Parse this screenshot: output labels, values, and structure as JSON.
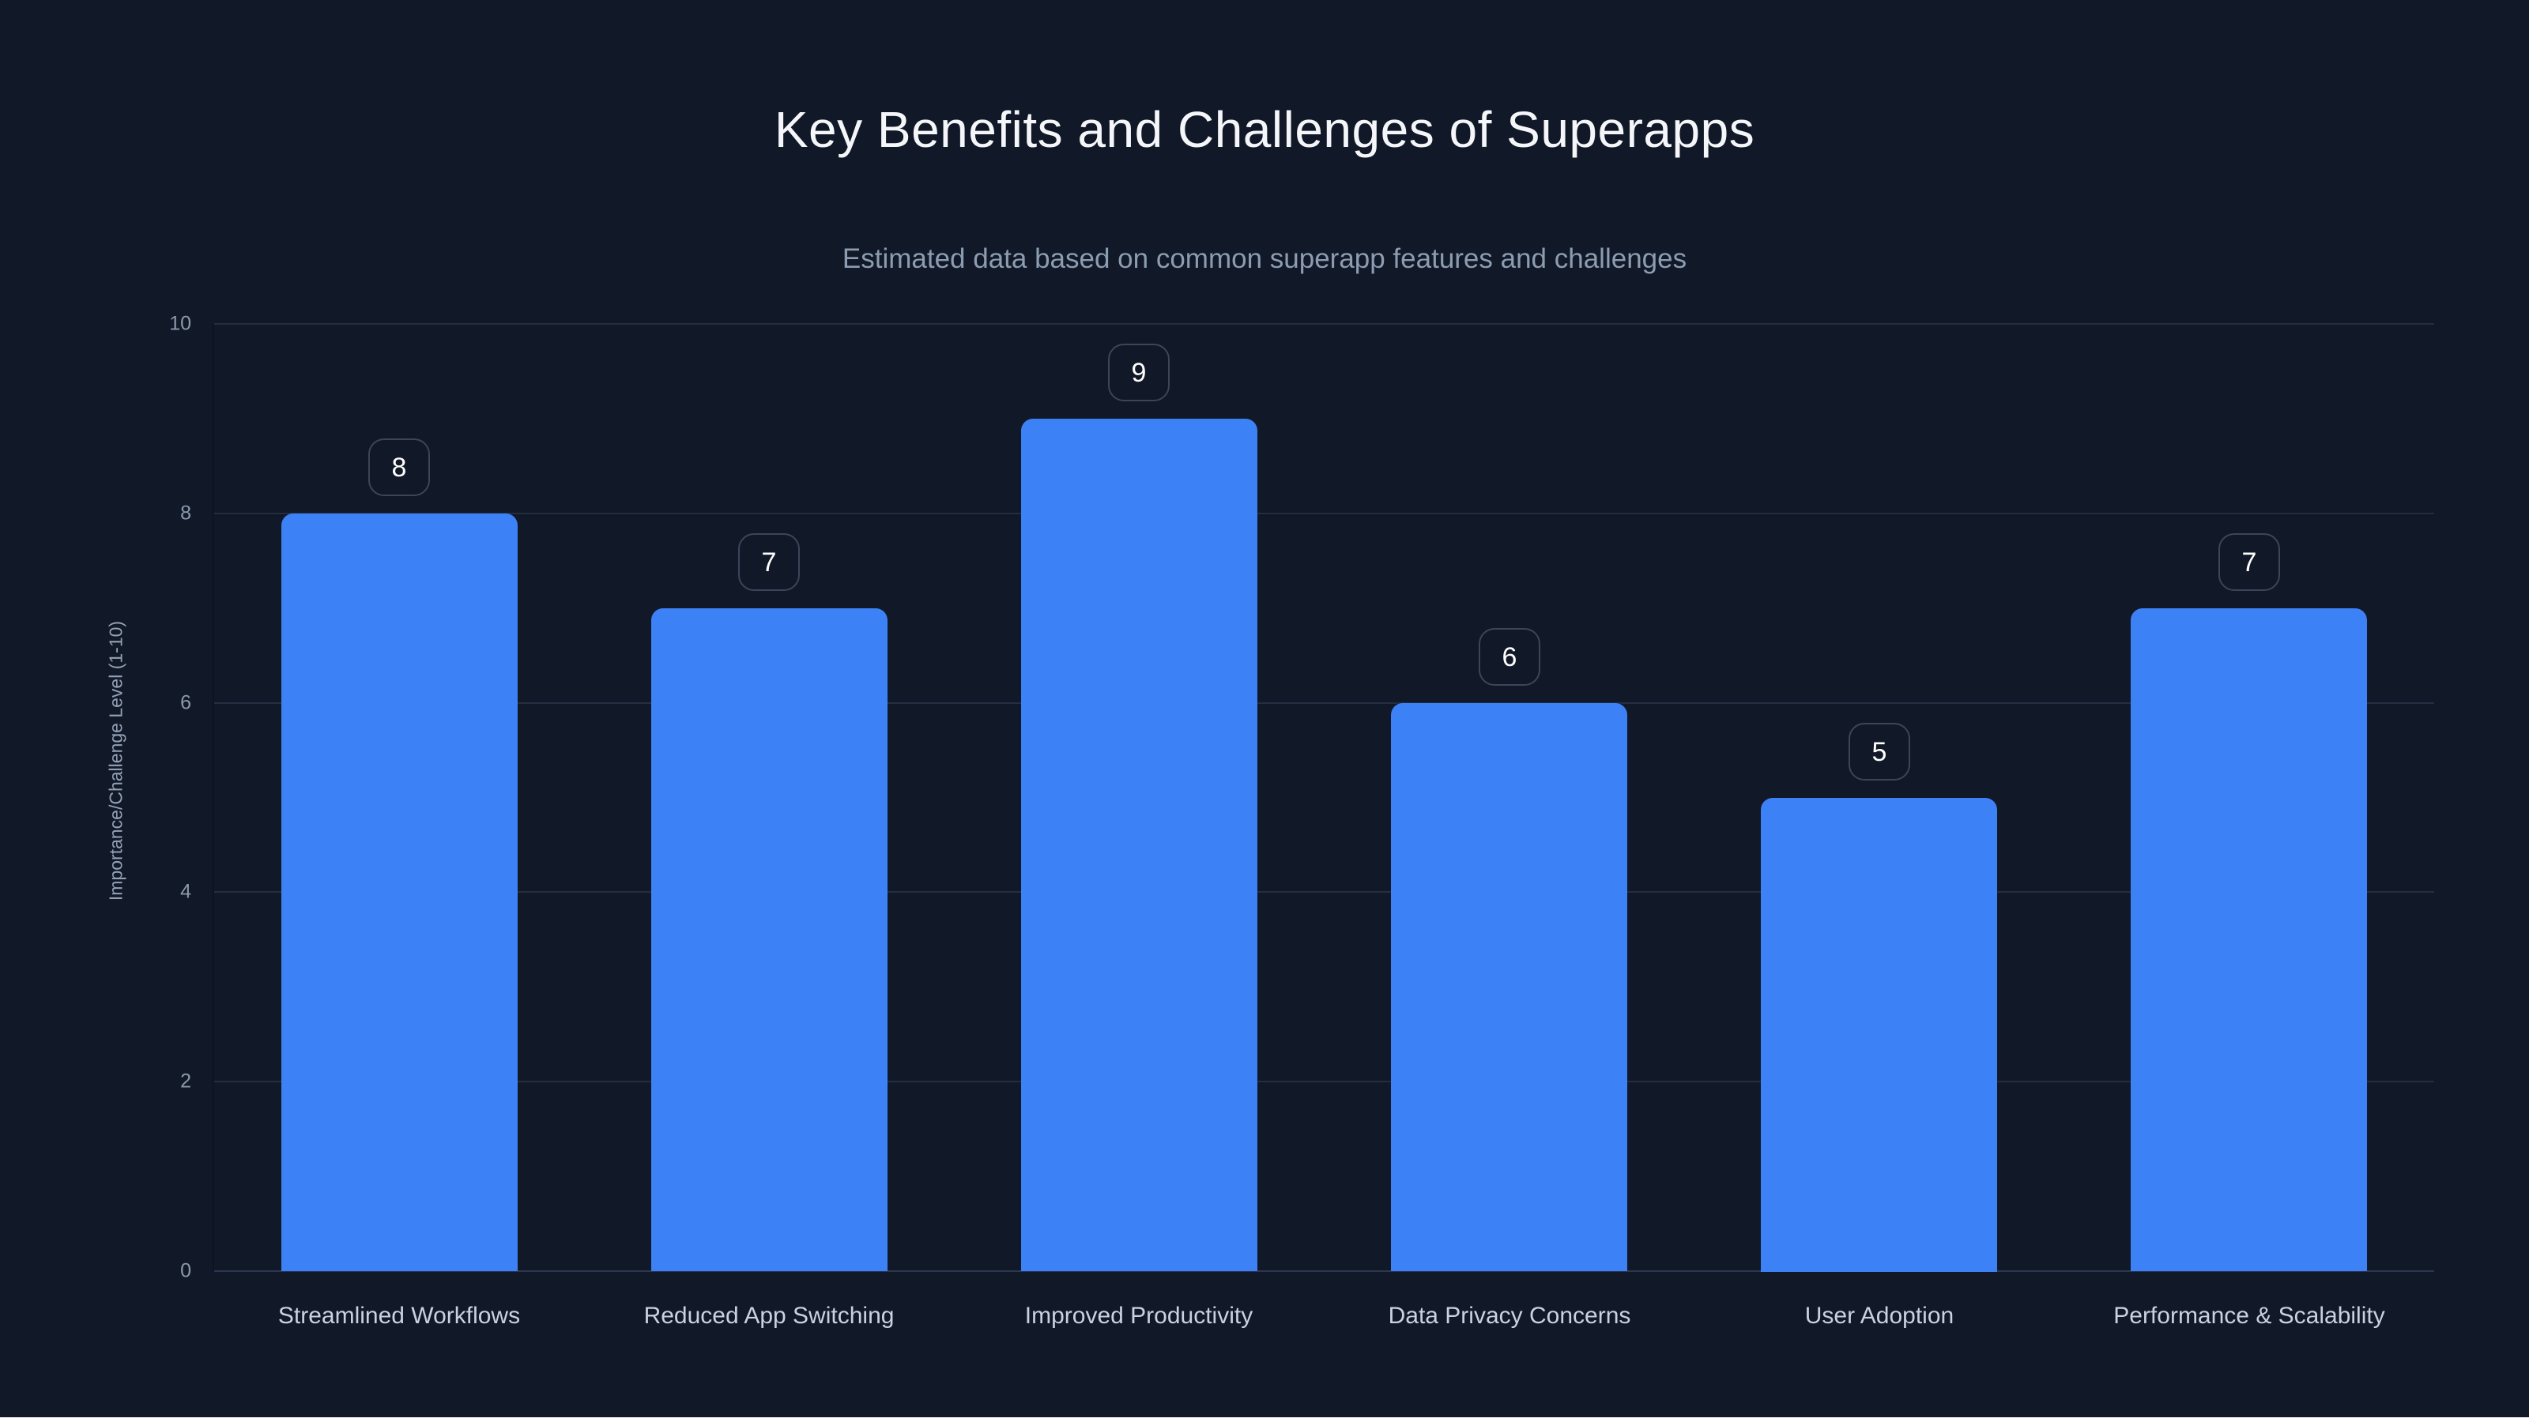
{
  "page": {
    "background_color": "#111827",
    "bottom_strip_color": "#ffffff"
  },
  "chart_data": {
    "type": "bar",
    "title": "Key Benefits and Challenges of Superapps",
    "subtitle": "Estimated data based on common superapp features and challenges",
    "categories": [
      "Streamlined Workflows",
      "Reduced App Switching",
      "Improved Productivity",
      "Data Privacy Concerns",
      "User Adoption",
      "Performance & Scalability"
    ],
    "values": [
      8,
      7,
      9,
      6,
      5,
      7
    ],
    "data_labels": [
      "8",
      "7",
      "9",
      "6",
      "5",
      "7"
    ],
    "xlabel": "",
    "ylabel": "Importance/Challenge Level (1-10)",
    "ylim": [
      0,
      10
    ],
    "yticks": [
      0,
      2,
      4,
      6,
      8,
      10
    ],
    "grid": true,
    "legend": "none",
    "colors": {
      "bar": "#3c82f6",
      "grid": "#232e42",
      "zero_line": "#2b3750",
      "axis_border": "#0d1420",
      "tick_text": "#8b99ad",
      "axis_title_text": "#93a1b6",
      "category_text": "#c9d2de",
      "value_text": "#ffffff",
      "badge_border": "#3b465a",
      "title_text": "#f4f6f9",
      "subtitle_text": "#8c9cb1"
    }
  }
}
